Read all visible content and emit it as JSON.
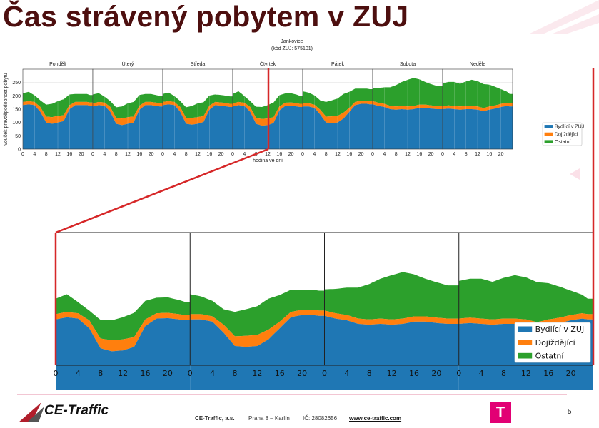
{
  "slide": {
    "title": "Čas strávený pobytem v ZUJ",
    "page_number": "5"
  },
  "footer": {
    "company": "CE-Traffic, a.s.",
    "address": "Praha 8 – Karlín",
    "ic": "IČ: 28082656",
    "website": "www.ce-traffic.com",
    "logo_text": "CE-Traffic",
    "tmobile_glyph": "T"
  },
  "colors": {
    "title": "#4d0f0f",
    "bydlici": "#1f77b4",
    "dojizdejici": "#ff7f0e",
    "ostatni": "#2ca02c",
    "highlight": "#d62728",
    "tmobile": "#e20074"
  },
  "chart_data": [
    {
      "type": "area",
      "title": "Jankovice",
      "subtitle": "(kód ZUJ: 575101)",
      "xlabel": "hodina ve dni",
      "ylabel": "vouček pravděpodobnost pobytu",
      "ylim": [
        0,
        300
      ],
      "yticks": [
        0,
        50,
        100,
        150,
        200,
        250
      ],
      "xticks": [
        0,
        4,
        8,
        12,
        16,
        20
      ],
      "stacked": true,
      "grid": true,
      "legend_position": "bottom-right",
      "legend": [
        "Bydlící v ZUJ",
        "Dojíždějící",
        "Ostatní"
      ],
      "panels": [
        {
          "day": "Pondělí",
          "x": [
            0,
            2,
            4,
            6,
            8,
            10,
            12,
            14,
            16,
            18,
            20,
            22,
            23
          ],
          "series": [
            {
              "name": "Bydlící v ZUJ",
              "values": [
                165,
                168,
                165,
                140,
                100,
                95,
                100,
                105,
                150,
                165,
                165,
                165,
                163
              ]
            },
            {
              "name": "Dojíždějící",
              "values": [
                12,
                12,
                12,
                18,
                22,
                25,
                25,
                22,
                15,
                12,
                12,
                12,
                12
              ]
            },
            {
              "name": "Ostatní",
              "values": [
                33,
                35,
                25,
                25,
                45,
                50,
                55,
                60,
                40,
                30,
                30,
                30,
                28
              ]
            }
          ]
        },
        {
          "day": "Úterý",
          "x": [
            0,
            2,
            4,
            6,
            8,
            10,
            12,
            14,
            16,
            18,
            20,
            22,
            23
          ],
          "series": [
            {
              "name": "Bydlící v ZUJ",
              "values": [
                160,
                165,
                163,
                140,
                95,
                90,
                95,
                100,
                148,
                165,
                165,
                162,
                160
              ]
            },
            {
              "name": "Dojíždějící",
              "values": [
                12,
                12,
                12,
                18,
                22,
                25,
                25,
                22,
                15,
                12,
                12,
                12,
                12
              ]
            },
            {
              "name": "Ostatní",
              "values": [
                33,
                33,
                22,
                22,
                40,
                45,
                52,
                55,
                40,
                30,
                30,
                28,
                28
              ]
            }
          ]
        },
        {
          "day": "Středa",
          "x": [
            0,
            2,
            4,
            6,
            8,
            10,
            12,
            14,
            16,
            18,
            20,
            22,
            23
          ],
          "series": [
            {
              "name": "Bydlící v ZUJ",
              "values": [
                165,
                168,
                165,
                140,
                95,
                92,
                95,
                102,
                148,
                165,
                163,
                160,
                158
              ]
            },
            {
              "name": "Dojíždějící",
              "values": [
                12,
                12,
                12,
                18,
                22,
                25,
                25,
                22,
                15,
                12,
                12,
                12,
                12
              ]
            },
            {
              "name": "Ostatní",
              "values": [
                30,
                32,
                22,
                22,
                40,
                45,
                52,
                52,
                38,
                28,
                28,
                28,
                28
              ]
            }
          ]
        },
        {
          "day": "Čtvrtek",
          "x": [
            0,
            2,
            4,
            6,
            8,
            10,
            12,
            14,
            16,
            18,
            20,
            22,
            23
          ],
          "series": [
            {
              "name": "Bydlící v ZUJ",
              "values": [
                160,
                165,
                162,
                140,
                95,
                88,
                90,
                98,
                145,
                162,
                163,
                160,
                158
              ]
            },
            {
              "name": "Dojíždějící",
              "values": [
                12,
                12,
                12,
                18,
                22,
                25,
                25,
                22,
                15,
                12,
                12,
                12,
                12
              ]
            },
            {
              "name": "Ostatní",
              "values": [
                35,
                40,
                25,
                22,
                42,
                45,
                50,
                55,
                42,
                35,
                35,
                32,
                30
              ]
            }
          ]
        },
        {
          "day": "Pátek",
          "x": [
            0,
            2,
            4,
            6,
            8,
            10,
            12,
            14,
            16,
            18,
            20,
            22,
            23
          ],
          "series": [
            {
              "name": "Bydlící v ZUJ",
              "values": [
                160,
                160,
                155,
                130,
                100,
                98,
                100,
                115,
                140,
                165,
                170,
                170,
                168
              ]
            },
            {
              "name": "Dojíždějící",
              "values": [
                12,
                12,
                12,
                18,
                22,
                25,
                25,
                22,
                15,
                12,
                12,
                12,
                12
              ]
            },
            {
              "name": "Ostatní",
              "values": [
                45,
                40,
                35,
                35,
                55,
                60,
                65,
                70,
                60,
                50,
                45,
                45,
                45
              ]
            }
          ]
        },
        {
          "day": "Sobota",
          "x": [
            0,
            2,
            4,
            6,
            8,
            10,
            12,
            14,
            16,
            18,
            20,
            22,
            23
          ],
          "series": [
            {
              "name": "Bydlící v ZUJ",
              "values": [
                168,
                162,
                158,
                150,
                148,
                150,
                148,
                150,
                155,
                155,
                152,
                150,
                150
              ]
            },
            {
              "name": "Dojíždějící",
              "values": [
                12,
                12,
                12,
                12,
                12,
                12,
                12,
                12,
                12,
                12,
                12,
                12,
                12
              ]
            },
            {
              "name": "Ostatní",
              "values": [
                48,
                55,
                62,
                70,
                80,
                90,
                100,
                105,
                95,
                85,
                80,
                75,
                75
              ]
            }
          ]
        },
        {
          "day": "Neděle",
          "x": [
            0,
            2,
            4,
            6,
            8,
            10,
            12,
            14,
            16,
            18,
            20,
            22,
            23
          ],
          "series": [
            {
              "name": "Bydlící v ZUJ",
              "values": [
                150,
                152,
                150,
                148,
                150,
                150,
                148,
                142,
                148,
                152,
                158,
                162,
                160
              ]
            },
            {
              "name": "Dojíždějící",
              "values": [
                12,
                12,
                12,
                12,
                12,
                12,
                12,
                12,
                12,
                12,
                12,
                12,
                12
              ]
            },
            {
              "name": "Ostatní",
              "values": [
                85,
                88,
                90,
                85,
                92,
                98,
                95,
                90,
                82,
                70,
                55,
                42,
                35
              ]
            }
          ]
        }
      ]
    },
    {
      "type": "area",
      "title": "",
      "xlabel": "",
      "ylabel": "",
      "stacked": true,
      "grid": false,
      "legend_position": "bottom-right",
      "legend": [
        "Bydlící v ZUJ",
        "Dojíždějící",
        "Ostatní"
      ],
      "xticks": [
        0,
        4,
        8,
        12,
        16,
        20
      ],
      "days_shown": [
        "Čtvrtek",
        "Pátek",
        "Sobota",
        "Neděle"
      ]
    }
  ]
}
